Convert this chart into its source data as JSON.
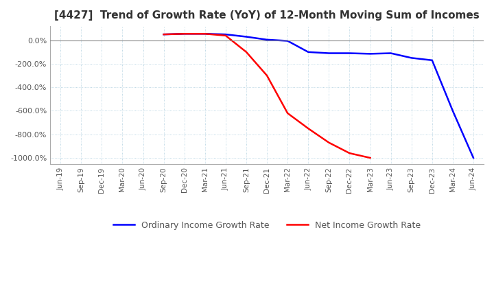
{
  "title": "[4427]  Trend of Growth Rate (YoY) of 12-Month Moving Sum of Incomes",
  "legend_labels": [
    "Ordinary Income Growth Rate",
    "Net Income Growth Rate"
  ],
  "line_colors": [
    "blue",
    "red"
  ],
  "ylim": [
    -1050,
    120
  ],
  "yticks": [
    0,
    -200,
    -400,
    -600,
    -800,
    -1000
  ],
  "x_labels": [
    "Jun-19",
    "Sep-19",
    "Dec-19",
    "Mar-20",
    "Jun-20",
    "Sep-20",
    "Dec-20",
    "Mar-21",
    "Jun-21",
    "Sep-21",
    "Dec-21",
    "Mar-22",
    "Jun-22",
    "Sep-22",
    "Dec-22",
    "Mar-23",
    "Jun-23",
    "Sep-23",
    "Dec-23",
    "Mar-24",
    "Jun-24"
  ],
  "ordinary_income": [
    null,
    null,
    null,
    null,
    null,
    50,
    55,
    55,
    50,
    30,
    5,
    -5,
    -100,
    -110,
    -110,
    -115,
    -110,
    -150,
    -170,
    -600,
    -1000
  ],
  "net_income": [
    null,
    null,
    null,
    null,
    null,
    50,
    55,
    55,
    40,
    -100,
    -300,
    -620,
    -750,
    -870,
    -960,
    -1000,
    null,
    null,
    null,
    null,
    null
  ]
}
